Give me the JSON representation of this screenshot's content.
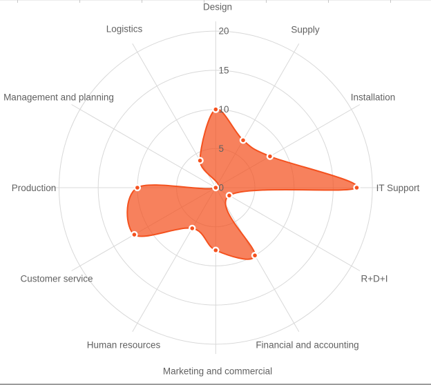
{
  "chart_data": {
    "type": "radar",
    "categories": [
      "Design",
      "Supply",
      "Installation",
      "IT Support",
      "R+D+I",
      "Financial and accounting",
      "Marketing and commercial",
      "Human resources",
      "Customer service",
      "Production",
      "Management and planning",
      "Logistics"
    ],
    "values": [
      10,
      7,
      8,
      18,
      2,
      10,
      8,
      6,
      12,
      10,
      0,
      4
    ],
    "radial_ticks": [
      0,
      5,
      10,
      15,
      20
    ],
    "rlim": [
      0,
      20
    ],
    "grid": true,
    "smooth": true,
    "legend": "none",
    "start_axis": "top",
    "direction": "clockwise"
  },
  "colors": {
    "series_line": "#f4511e",
    "series_fill": "rgba(244,81,30,0.72)",
    "marker": "#f4511e",
    "marker_ring": "#ffffff",
    "grid_line": "#d8d8d8",
    "axis_label": "#616161",
    "tick_label": "#616161",
    "bottom_border": "#9b9b9b"
  }
}
